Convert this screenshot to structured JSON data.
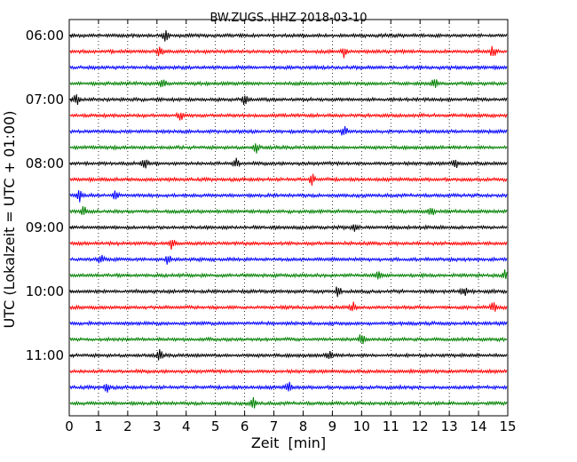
{
  "chart_data": {
    "type": "line",
    "title": "BW.ZUGS..HHZ 2018-03-10",
    "xlabel": "Zeit  [min]",
    "ylabel": "UTC (Lokalzeit = UTC + 01:00)",
    "xlim": [
      0,
      15
    ],
    "x_ticks": [
      "0",
      "1",
      "2",
      "3",
      "4",
      "5",
      "6",
      "7",
      "8",
      "9",
      "10",
      "11",
      "12",
      "13",
      "14",
      "15"
    ],
    "y_ticks": [
      "06:00",
      "07:00",
      "08:00",
      "09:00",
      "10:00",
      "11:00"
    ],
    "y_tick_rows": [
      0,
      4,
      8,
      12,
      16,
      20
    ],
    "grid": "dotted vertical",
    "row_interval_min": 15,
    "colors": [
      "#000000",
      "#ff0000",
      "#0000ff",
      "#008000"
    ],
    "traces": [
      {
        "start": "06:00",
        "events_min": [
          3.3
        ]
      },
      {
        "start": "06:15",
        "events_min": [
          3.1,
          9.4,
          14.5
        ]
      },
      {
        "start": "06:30",
        "events_min": []
      },
      {
        "start": "06:45",
        "events_min": [
          3.2,
          12.5
        ]
      },
      {
        "start": "07:00",
        "events_min": [
          0.25,
          6.0
        ]
      },
      {
        "start": "07:15",
        "events_min": [
          3.8
        ]
      },
      {
        "start": "07:30",
        "events_min": [
          9.4
        ]
      },
      {
        "start": "07:45",
        "events_min": [
          6.4
        ]
      },
      {
        "start": "08:00",
        "events_min": [
          2.6,
          5.7,
          13.2
        ]
      },
      {
        "start": "08:15",
        "events_min": [
          8.3
        ]
      },
      {
        "start": "08:30",
        "events_min": [
          0.35,
          1.6
        ]
      },
      {
        "start": "08:45",
        "events_min": [
          0.5,
          12.4
        ]
      },
      {
        "start": "09:00",
        "events_min": [
          9.8
        ]
      },
      {
        "start": "09:15",
        "events_min": [
          3.5
        ]
      },
      {
        "start": "09:30",
        "events_min": [
          3.4,
          1.1
        ]
      },
      {
        "start": "09:45",
        "events_min": [
          10.6,
          14.9
        ]
      },
      {
        "start": "10:00",
        "events_min": [
          9.2,
          13.5
        ]
      },
      {
        "start": "10:15",
        "events_min": [
          9.7,
          14.5
        ]
      },
      {
        "start": "10:30",
        "events_min": []
      },
      {
        "start": "10:45",
        "events_min": [
          10.0
        ]
      },
      {
        "start": "11:00",
        "events_min": [
          3.1,
          8.9
        ]
      },
      {
        "start": "11:15",
        "events_min": []
      },
      {
        "start": "11:30",
        "events_min": [
          1.3,
          7.5
        ]
      },
      {
        "start": "11:45",
        "events_min": [
          6.3
        ]
      }
    ]
  }
}
